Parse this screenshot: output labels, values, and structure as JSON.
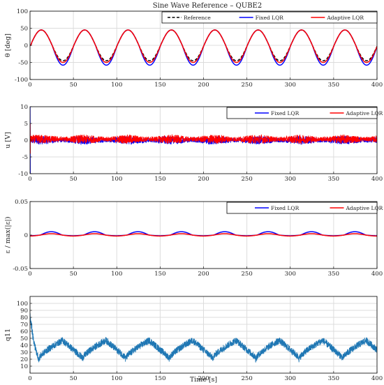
{
  "title": "Sine Wave Reference – QUBE2",
  "chart_data": [
    {
      "type": "line",
      "ylabel": "θ [deg]",
      "xlabel": "",
      "xlim": [
        0,
        400
      ],
      "ylim": [
        -100,
        100
      ],
      "xticks": [
        0,
        50,
        100,
        150,
        200,
        250,
        300,
        350,
        400
      ],
      "yticks": [
        -100,
        -50,
        0,
        50,
        100
      ],
      "grid": true,
      "legend": "top-right",
      "series": [
        {
          "name": "Reference",
          "color": "#000000",
          "style": "dashed",
          "signal": "sine",
          "amplitude": 45,
          "offset": 0,
          "period_s": 50
        },
        {
          "name": "Fixed LQR",
          "color": "#0000ff",
          "style": "solid",
          "signal": "sine",
          "max": 45,
          "min": -58,
          "period_s": 50
        },
        {
          "name": "Adaptive LQR",
          "color": "#ff0000",
          "style": "solid",
          "signal": "sine",
          "max": 45,
          "min": -50,
          "period_s": 50
        }
      ]
    },
    {
      "type": "line",
      "ylabel": "u [V]",
      "xlabel": "",
      "xlim": [
        0,
        400
      ],
      "ylim": [
        -10,
        10
      ],
      "xticks": [
        0,
        50,
        100,
        150,
        200,
        250,
        300,
        350,
        400
      ],
      "yticks": [
        -10,
        -5,
        0,
        5,
        10
      ],
      "grid": true,
      "legend": "top-right",
      "series": [
        {
          "name": "Fixed LQR",
          "color": "#0000ff",
          "style": "solid",
          "signal": "noisy",
          "level": 0,
          "band": 1.2,
          "initial_spike": [
            10,
            -10
          ]
        },
        {
          "name": "Adaptive LQR",
          "color": "#ff0000",
          "style": "solid",
          "signal": "noisy",
          "level": 0.3,
          "band": 1.3,
          "initial_spike": [
            5,
            -4
          ]
        }
      ]
    },
    {
      "type": "line",
      "ylabel": "ε / max(|ε|)",
      "xlabel": "",
      "xlim": [
        0,
        400
      ],
      "ylim": [
        -0.05,
        0.05
      ],
      "xticks": [
        0,
        50,
        100,
        150,
        200,
        250,
        300,
        350,
        400
      ],
      "yticks": [
        -0.05,
        0,
        0.05
      ],
      "ytick_labels": [
        "-0.05",
        "0",
        "0.05"
      ],
      "grid": true,
      "legend": "top-right",
      "series": [
        {
          "name": "Fixed LQR",
          "color": "#0000ff",
          "style": "solid",
          "signal": "bumps",
          "max": 0.005,
          "min": -0.001,
          "period_s": 50
        },
        {
          "name": "Adaptive LQR",
          "color": "#ff0000",
          "style": "solid",
          "signal": "bumps",
          "max": 0.002,
          "min": -0.0015,
          "period_s": 50
        }
      ]
    },
    {
      "type": "line",
      "ylabel": "q11",
      "xlabel": "Time [s]",
      "xlim": [
        0,
        400
      ],
      "ylim": [
        0,
        110
      ],
      "xticks": [
        0,
        50,
        100,
        150,
        200,
        250,
        300,
        350,
        400
      ],
      "yticks": [
        10,
        20,
        30,
        40,
        50,
        60,
        70,
        80,
        90,
        100
      ],
      "grid": true,
      "legend": "none",
      "series": [
        {
          "name": "",
          "color": "#1f77b4",
          "style": "solid",
          "signal": "sawtooth",
          "initial_peak": 85,
          "min": 20,
          "max": 47,
          "period_s": 50
        }
      ]
    }
  ]
}
